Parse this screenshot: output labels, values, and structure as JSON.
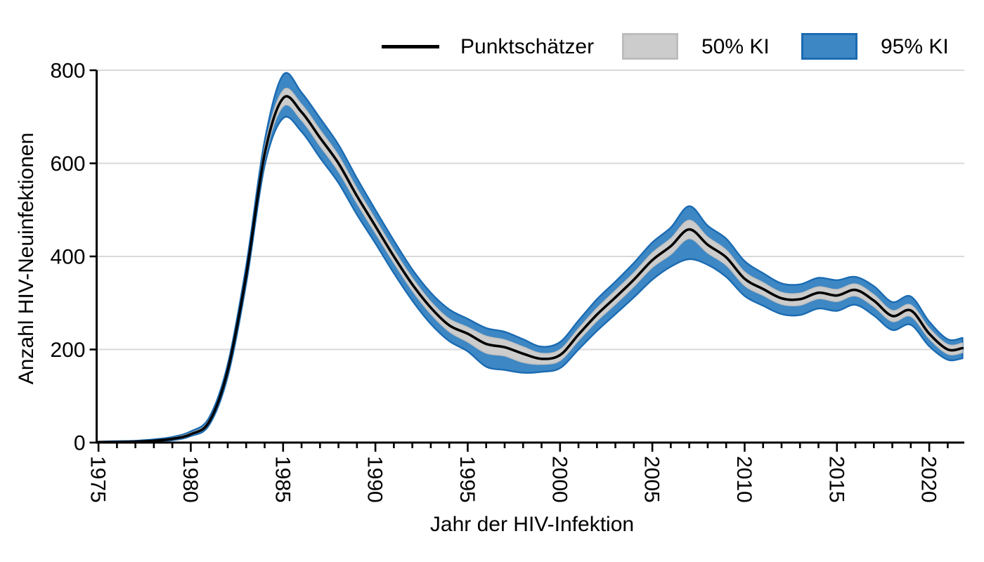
{
  "legend": {
    "point_label": "Punktschätzer",
    "ci50_label": "50% KI",
    "ci95_label": "95% KI"
  },
  "axes": {
    "y_title": "Anzahl HIV-Neuinfektionen",
    "x_title": "Jahr der HIV-Infektion"
  },
  "colors": {
    "grid": "#d9d9d9",
    "axis": "#000000"
  },
  "chart_data": {
    "type": "line",
    "title": "",
    "xlabel": "Jahr der HIV-Infektion",
    "ylabel": "Anzahl HIV-Neuinfektionen",
    "xlim": [
      1974.9,
      2021.9
    ],
    "ylim": [
      0,
      800
    ],
    "y_ticks": [
      0,
      200,
      400,
      600,
      800
    ],
    "x_ticks_labeled": [
      1975,
      1980,
      1985,
      1990,
      1995,
      2000,
      2005,
      2010,
      2015,
      2020
    ],
    "x_minor_ticks_every_year": true,
    "grid": "horizontal-only",
    "legend_position": "top",
    "x": [
      1975,
      1976,
      1977,
      1978,
      1979,
      1980,
      1981,
      1982,
      1983,
      1984,
      1985,
      1986,
      1987,
      1988,
      1989,
      1990,
      1991,
      1992,
      1993,
      1994,
      1995,
      1996,
      1997,
      1998,
      1999,
      2000,
      2001,
      2002,
      2003,
      2004,
      2005,
      2006,
      2007,
      2008,
      2009,
      2010,
      2011,
      2012,
      2013,
      2014,
      2015,
      2016,
      2017,
      2018,
      2019,
      2020,
      2021,
      2021.8
    ],
    "series": [
      {
        "name": "Punktschätzer",
        "kind": "line",
        "color": "#000000",
        "values": [
          1,
          1,
          2,
          4,
          8,
          18,
          45,
          155,
          360,
          620,
          740,
          710,
          655,
          600,
          530,
          465,
          400,
          340,
          290,
          252,
          234,
          212,
          205,
          191,
          180,
          188,
          232,
          275,
          312,
          350,
          392,
          422,
          458,
          425,
          398,
          352,
          330,
          310,
          308,
          322,
          316,
          328,
          305,
          272,
          284,
          234,
          200,
          203
        ]
      },
      {
        "name": "50% KI",
        "kind": "band",
        "fill": "#cccccc",
        "edge": "#bdbdbd",
        "lower": [
          0,
          0,
          1,
          3,
          6,
          16,
          42,
          148,
          352,
          608,
          722,
          692,
          637,
          582,
          514,
          450,
          386,
          326,
          276,
          238,
          216,
          192,
          186,
          172,
          168,
          176,
          219,
          261,
          297,
          335,
          376,
          404,
          438,
          407,
          381,
          337,
          316,
          297,
          295,
          309,
          303,
          315,
          292,
          260,
          271,
          223,
          190,
          193
        ],
        "upper": [
          1,
          2,
          3,
          5,
          10,
          21,
          49,
          161,
          369,
          634,
          757,
          727,
          672,
          617,
          546,
          480,
          414,
          354,
          303,
          266,
          248,
          229,
          221,
          206,
          192,
          200,
          245,
          289,
          327,
          365,
          408,
          439,
          478,
          442,
          414,
          367,
          344,
          323,
          321,
          335,
          329,
          341,
          318,
          284,
          296,
          246,
          211,
          214
        ]
      },
      {
        "name": "95% KI",
        "kind": "band",
        "fill": "#3d87c4",
        "edge": "#1b6bb2",
        "lower": [
          0,
          0,
          1,
          2,
          5,
          14,
          38,
          142,
          342,
          595,
          697,
          668,
          612,
          558,
          490,
          428,
          364,
          305,
          255,
          218,
          196,
          163,
          156,
          150,
          152,
          160,
          200,
          240,
          276,
          312,
          350,
          378,
          394,
          382,
          356,
          315,
          294,
          276,
          274,
          288,
          283,
          296,
          273,
          242,
          253,
          207,
          178,
          181
        ],
        "upper": [
          2,
          3,
          4,
          7,
          12,
          24,
          54,
          168,
          380,
          648,
          790,
          752,
          697,
          640,
          568,
          500,
          434,
          372,
          322,
          286,
          266,
          246,
          238,
          222,
          206,
          216,
          262,
          308,
          346,
          386,
          430,
          462,
          508,
          466,
          438,
          390,
          364,
          342,
          340,
          354,
          349,
          356,
          336,
          302,
          314,
          260,
          222,
          225
        ]
      }
    ]
  }
}
